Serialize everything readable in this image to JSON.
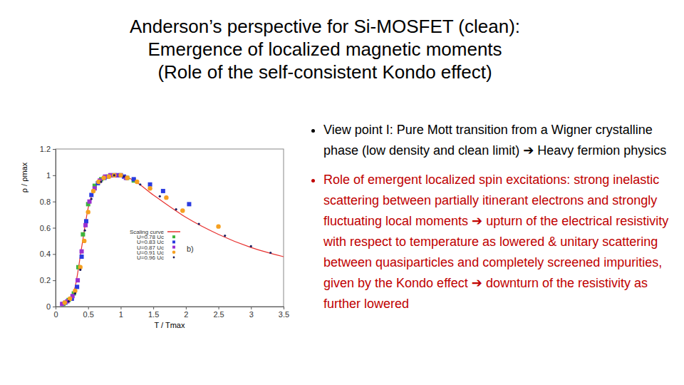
{
  "header": {
    "lines": [
      "Anderson’s perspective for Si-MOSFET (clean):",
      "Emergence of localized magnetic moments",
      "(Role of the self-consistent Kondo effect)"
    ]
  },
  "bullets": [
    {
      "text": "View point I: Pure Mott transition from a Wigner crystalline phase (low density and clean limit) ➔ Heavy fermion physics",
      "color": "#000000"
    },
    {
      "text": "Role of emergent localized spin excitations: strong inelastic scattering between partially itinerant electrons and strongly fluctuating local moments ➔ upturn of the electrical resistivity with respect to temperature as lowered & unitary scattering between quasiparticles and completely screened impurities, given by the Kondo effect ➔ downturn of the resistivity as further lowered",
      "color": "#c00000"
    }
  ],
  "chart_data": {
    "type": "scatter",
    "x_label": "T / Tmax",
    "y_label": "ρ / ρmax",
    "annotation": "b)",
    "xlim": [
      0,
      3.5
    ],
    "ylim": [
      0,
      1.2
    ],
    "xticks": [
      0,
      0.5,
      1,
      1.5,
      2,
      2.5,
      3,
      3.5
    ],
    "yticks": [
      0,
      0.2,
      0.4,
      0.6,
      0.8,
      1,
      1.2
    ],
    "legend": "center",
    "series": [
      {
        "name": "Scaling curve",
        "type": "line",
        "color": "#e8312f",
        "line_style": "solid",
        "x": [
          0.1,
          0.2,
          0.3,
          0.4,
          0.5,
          0.6,
          0.7,
          0.8,
          0.9,
          1.0,
          1.2,
          1.5,
          2.0,
          2.5,
          3.0,
          3.5
        ],
        "values": [
          0.02,
          0.05,
          0.15,
          0.45,
          0.75,
          0.9,
          0.96,
          0.99,
          1.0,
          1.0,
          0.96,
          0.85,
          0.68,
          0.55,
          0.45,
          0.38
        ]
      },
      {
        "name": "U=0.78 Uc",
        "color": "#3cb43c",
        "marker": "square",
        "x": [
          0.12,
          0.2,
          0.28,
          0.35,
          0.42,
          0.5,
          0.6,
          0.7,
          0.8,
          0.9,
          1.0,
          1.1,
          1.2
        ],
        "values": [
          0.02,
          0.05,
          0.1,
          0.3,
          0.55,
          0.78,
          0.92,
          0.97,
          0.99,
          1.0,
          1.0,
          0.98,
          0.96
        ]
      },
      {
        "name": "U=0.83 Uc",
        "color": "#2a3be0",
        "marker": "square",
        "x": [
          0.15,
          0.25,
          0.33,
          0.4,
          0.47,
          0.55,
          0.65,
          0.75,
          0.85,
          0.95,
          1.05,
          1.2,
          1.45,
          1.65,
          2.05
        ],
        "values": [
          0.03,
          0.06,
          0.15,
          0.38,
          0.65,
          0.85,
          0.94,
          0.98,
          1.0,
          1.0,
          0.99,
          0.97,
          0.93,
          0.88,
          0.78
        ]
      },
      {
        "name": "U=0.87 Uc",
        "color": "#9b30d0",
        "marker": "square",
        "x": [
          0.1,
          0.18,
          0.26,
          0.34,
          0.4,
          0.46,
          0.52,
          0.6,
          0.68,
          0.76,
          0.84,
          0.92,
          1.0,
          1.08
        ],
        "values": [
          0.02,
          0.04,
          0.08,
          0.2,
          0.42,
          0.62,
          0.8,
          0.9,
          0.96,
          0.99,
          1.0,
          1.0,
          1.0,
          0.98
        ]
      },
      {
        "name": "U=0.91 Uc",
        "color": "#f5a020",
        "marker": "circle",
        "x": [
          0.14,
          0.22,
          0.3,
          0.38,
          0.44,
          0.5,
          0.58,
          0.66,
          0.74,
          0.82,
          0.9,
          1.0,
          1.1,
          1.25,
          1.45,
          1.7,
          1.95,
          2.5
        ],
        "values": [
          0.03,
          0.06,
          0.12,
          0.3,
          0.5,
          0.72,
          0.88,
          0.95,
          0.98,
          0.99,
          1.0,
          1.0,
          0.98,
          0.95,
          0.9,
          0.83,
          0.73,
          0.61
        ]
      },
      {
        "name": "U=0.96 Uc",
        "color": "#1b1b5e",
        "marker": "point",
        "x": [
          0.2,
          0.3,
          0.38,
          0.45,
          0.55,
          0.7,
          0.9,
          1.05,
          1.3,
          1.6,
          1.85,
          2.2,
          2.6,
          3.0,
          3.3
        ],
        "values": [
          0.04,
          0.1,
          0.28,
          0.58,
          0.82,
          0.95,
          1.0,
          0.99,
          0.93,
          0.84,
          0.74,
          0.63,
          0.54,
          0.46,
          0.41
        ]
      }
    ]
  }
}
